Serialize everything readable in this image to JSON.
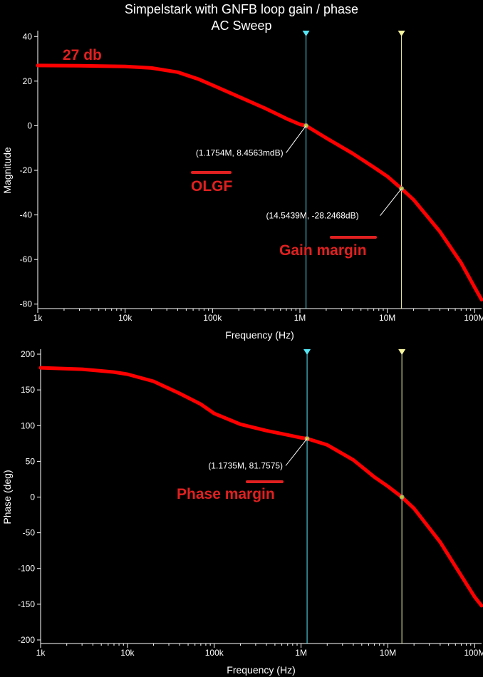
{
  "title": "Simpelstark with GNFB loop gain / phase",
  "subtitle": "AC Sweep",
  "colors": {
    "background": "#000000",
    "trace": "#ff0000",
    "cursor1": "#55e6f5",
    "cursor2": "#f5f5a0",
    "annotation": "#e02020",
    "axis": "#ffffff"
  },
  "chart_data": [
    {
      "type": "line",
      "xscale": "log",
      "xlabel": "Frequency (Hz)",
      "ylabel": "Magnitude",
      "xlim": [
        1000,
        120000000
      ],
      "ylim": [
        -82,
        42
      ],
      "xticks": [
        {
          "v": 1000,
          "label": "1k"
        },
        {
          "v": 10000,
          "label": "10k"
        },
        {
          "v": 100000,
          "label": "100k"
        },
        {
          "v": 1000000,
          "label": "1M"
        },
        {
          "v": 10000000,
          "label": "10M"
        },
        {
          "v": 100000000,
          "label": "100M"
        }
      ],
      "yticks": [
        40,
        20,
        0,
        -20,
        -40,
        -60,
        -80
      ],
      "series": [
        {
          "x": [
            1000,
            3000,
            10000,
            20000,
            40000,
            70000,
            100000,
            200000,
            400000,
            700000,
            1000000,
            1175400,
            2000000,
            4000000,
            7000000,
            10000000,
            14543900,
            20000000,
            40000000,
            70000000,
            100000000,
            120000000
          ],
          "values": [
            27.0,
            26.9,
            26.6,
            25.9,
            24.0,
            20.8,
            18.2,
            13.0,
            7.8,
            3.2,
            0.6,
            0.0,
            -5.5,
            -12.4,
            -18.6,
            -22.7,
            -28.2,
            -33.2,
            -47.5,
            -61.5,
            -72.5,
            -78.0
          ]
        }
      ],
      "cursors": [
        {
          "x": 1175400,
          "y": 0.0,
          "label": "(1.1754M, 8.4563mdB)"
        },
        {
          "x": 14543900,
          "y": -28.2,
          "label": "(14.5439M, -28.2468dB)"
        }
      ],
      "annotations": [
        {
          "text": "27 db"
        },
        {
          "text": "OLGF"
        },
        {
          "text": "Gain margin"
        }
      ]
    },
    {
      "type": "line",
      "xscale": "log",
      "xlabel": "Frequency (Hz)",
      "ylabel": "Phase (deg)",
      "xlim": [
        1000,
        120000000
      ],
      "ylim": [
        -205,
        205
      ],
      "xticks": [
        {
          "v": 1000,
          "label": "1k"
        },
        {
          "v": 10000,
          "label": "10k"
        },
        {
          "v": 100000,
          "label": "100k"
        },
        {
          "v": 1000000,
          "label": "1M"
        },
        {
          "v": 10000000,
          "label": "10M"
        },
        {
          "v": 100000000,
          "label": "100M"
        }
      ],
      "yticks": [
        200,
        150,
        100,
        50,
        0,
        -50,
        -100,
        -150,
        -200
      ],
      "series": [
        {
          "x": [
            1000,
            3000,
            7000,
            10000,
            20000,
            40000,
            70000,
            100000,
            200000,
            400000,
            700000,
            1000000,
            1173500,
            2000000,
            4000000,
            7000000,
            10000000,
            14500000,
            20000000,
            40000000,
            70000000,
            100000000,
            120000000
          ],
          "values": [
            181,
            179,
            175,
            172,
            162,
            145,
            130,
            117,
            102,
            93,
            87,
            83,
            81.8,
            73,
            52,
            28,
            15,
            0,
            -16,
            -63,
            -110,
            -140,
            -152
          ]
        }
      ],
      "cursors": [
        {
          "x": 1173500,
          "y": 81.8,
          "label": "(1.1735M, 81.7575)"
        },
        {
          "x": 14500000,
          "y": 0.0,
          "label": ""
        }
      ],
      "annotations": [
        {
          "text": "Phase margin"
        }
      ]
    }
  ]
}
